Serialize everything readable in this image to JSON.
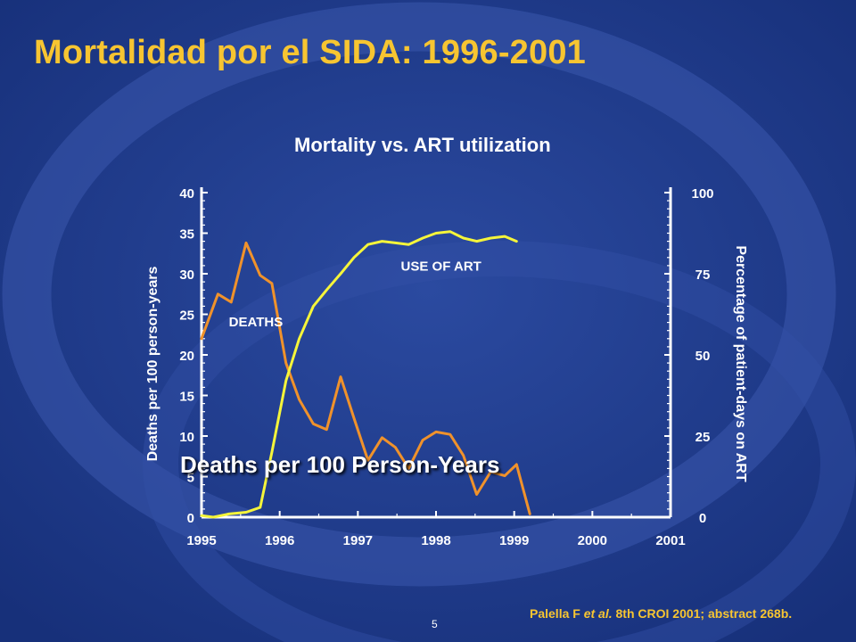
{
  "slide": {
    "title": "Mortalidad por el SIDA: 1996-2001",
    "overlay_text": "Deaths per 100 Person-Years",
    "citation_author": "Palella F ",
    "citation_etal": "et al.",
    "citation_rest": " 8th CROI 2001; abstract 268b.",
    "page_number": "5"
  },
  "colors": {
    "background": "#1f3a8a",
    "title": "#f7c531",
    "deaths_line": "#f0922b",
    "art_line": "#f5f53a",
    "text": "#ffffff"
  },
  "chart_data": {
    "type": "line",
    "title": "Mortality vs. ART utilization",
    "xlabel": "",
    "ylabel": "Deaths per 100 person-years",
    "y2label": "Percentage of patient-days on ART",
    "xlim": [
      1995,
      2001
    ],
    "ylim": [
      0,
      40
    ],
    "y2lim": [
      0,
      100
    ],
    "x_ticks": [
      "1995",
      "1996",
      "1997",
      "1998",
      "1999",
      "2000",
      "2001"
    ],
    "y_ticks": [
      "0",
      "5",
      "10",
      "15",
      "20",
      "25",
      "30",
      "35",
      "40"
    ],
    "y2_ticks": [
      "0",
      "25",
      "50",
      "75",
      "100"
    ],
    "grid": false,
    "series": [
      {
        "name": "DEATHS",
        "axis": "left",
        "points": [
          [
            1995.0,
            22.0
          ],
          [
            1995.21,
            27.5
          ],
          [
            1995.38,
            26.5
          ],
          [
            1995.57,
            33.8
          ],
          [
            1995.75,
            29.8
          ],
          [
            1995.9,
            28.8
          ],
          [
            1996.08,
            19.0
          ],
          [
            1996.25,
            14.5
          ],
          [
            1996.43,
            11.5
          ],
          [
            1996.6,
            10.8
          ],
          [
            1996.78,
            17.3
          ],
          [
            1996.95,
            12.2
          ],
          [
            1997.13,
            7.0
          ],
          [
            1997.31,
            9.8
          ],
          [
            1997.48,
            8.6
          ],
          [
            1997.65,
            6.0
          ],
          [
            1997.83,
            9.5
          ],
          [
            1998.0,
            10.5
          ],
          [
            1998.18,
            10.2
          ],
          [
            1998.35,
            7.6
          ],
          [
            1998.52,
            2.8
          ],
          [
            1998.7,
            5.6
          ],
          [
            1998.88,
            5.1
          ],
          [
            1999.03,
            6.5
          ],
          [
            1999.2,
            0.4
          ]
        ]
      },
      {
        "name": "USE OF ART",
        "axis": "right",
        "points": [
          [
            1995.0,
            0.5
          ],
          [
            1995.15,
            0.0
          ],
          [
            1995.35,
            1.0
          ],
          [
            1995.57,
            1.5
          ],
          [
            1995.75,
            3.0
          ],
          [
            1995.9,
            20.0
          ],
          [
            1996.08,
            42.0
          ],
          [
            1996.25,
            55.0
          ],
          [
            1996.43,
            65.0
          ],
          [
            1996.6,
            70.0
          ],
          [
            1996.78,
            75.0
          ],
          [
            1996.95,
            80.0
          ],
          [
            1997.13,
            84.0
          ],
          [
            1997.31,
            85.0
          ],
          [
            1997.48,
            84.5
          ],
          [
            1997.65,
            84.0
          ],
          [
            1997.83,
            86.0
          ],
          [
            1998.0,
            87.5
          ],
          [
            1998.18,
            88.0
          ],
          [
            1998.35,
            86.0
          ],
          [
            1998.52,
            85.0
          ],
          [
            1998.7,
            86.0
          ],
          [
            1998.88,
            86.5
          ],
          [
            1999.03,
            85.0
          ]
        ]
      }
    ],
    "annotations": [
      {
        "text": "DEATHS",
        "x": 1995.35,
        "y": 23.5,
        "axis": "left"
      },
      {
        "text": "USE OF ART",
        "x": 1997.55,
        "y": 76.0,
        "axis": "right"
      }
    ]
  }
}
